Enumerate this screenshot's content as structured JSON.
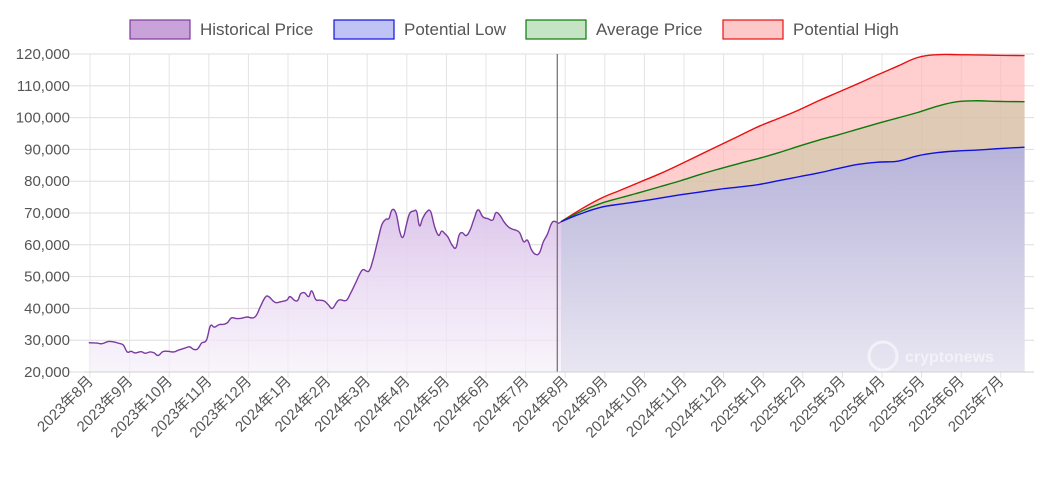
{
  "legend": {
    "items": [
      {
        "key": "hist",
        "label": "Historical Price",
        "fill": "#c8a2d8",
        "stroke": "#7b3aa0"
      },
      {
        "key": "low",
        "label": "Potential Low",
        "fill": "#c0c3f6",
        "stroke": "#1010e0"
      },
      {
        "key": "avg",
        "label": "Average Price",
        "fill": "#c5e4c3",
        "stroke": "#0a7a0a"
      },
      {
        "key": "high",
        "label": "Potential High",
        "fill": "#fcc8c8",
        "stroke": "#e81010"
      }
    ]
  },
  "watermark": "cryptonews",
  "chart_data": {
    "type": "area",
    "yticks": [
      20000,
      30000,
      40000,
      50000,
      60000,
      70000,
      80000,
      90000,
      100000,
      110000,
      120000
    ],
    "ylim": [
      20000,
      120000
    ],
    "xticks": [
      "2023年8月",
      "2023年9月",
      "2023年10月",
      "2023年11月",
      "2023年12月",
      "2024年1月",
      "2024年2月",
      "2024年3月",
      "2024年4月",
      "2024年5月",
      "2024年6月",
      "2024年7月",
      "2024年8月",
      "2024年9月",
      "2024年10月",
      "2024年11月",
      "2024年12月",
      "2025年1月",
      "2025年2月",
      "2025年3月",
      "2025年4月",
      "2025年5月",
      "2025年6月",
      "2025年7月"
    ],
    "grid": true,
    "legend_position": "top",
    "divider_month": 11.8,
    "xlim_months": [
      -0.03,
      23.6
    ],
    "historical": {
      "name": "Historical Price",
      "points": [
        [
          -0.03,
          29200
        ],
        [
          0.17,
          29100
        ],
        [
          0.3,
          28900
        ],
        [
          0.47,
          29600
        ],
        [
          0.62,
          29400
        ],
        [
          0.73,
          29000
        ],
        [
          0.84,
          28500
        ],
        [
          0.94,
          26300
        ],
        [
          1.04,
          26500
        ],
        [
          1.14,
          26000
        ],
        [
          1.29,
          26400
        ],
        [
          1.39,
          25900
        ],
        [
          1.52,
          26300
        ],
        [
          1.62,
          26000
        ],
        [
          1.72,
          25200
        ],
        [
          1.84,
          26400
        ],
        [
          1.97,
          26500
        ],
        [
          2.11,
          26300
        ],
        [
          2.24,
          26900
        ],
        [
          2.39,
          27500
        ],
        [
          2.52,
          27900
        ],
        [
          2.62,
          27100
        ],
        [
          2.72,
          27300
        ],
        [
          2.82,
          29100
        ],
        [
          2.94,
          30000
        ],
        [
          3.04,
          34500
        ],
        [
          3.14,
          34100
        ],
        [
          3.26,
          34900
        ],
        [
          3.37,
          35000
        ],
        [
          3.47,
          35500
        ],
        [
          3.57,
          37000
        ],
        [
          3.7,
          36800
        ],
        [
          3.82,
          36900
        ],
        [
          3.97,
          37300
        ],
        [
          4.1,
          37000
        ],
        [
          4.2,
          37800
        ],
        [
          4.3,
          40500
        ],
        [
          4.42,
          43400
        ],
        [
          4.5,
          43800
        ],
        [
          4.62,
          42400
        ],
        [
          4.7,
          41800
        ],
        [
          4.82,
          42100
        ],
        [
          4.97,
          42600
        ],
        [
          5.05,
          43700
        ],
        [
          5.17,
          42500
        ],
        [
          5.25,
          42600
        ],
        [
          5.32,
          44600
        ],
        [
          5.42,
          44900
        ],
        [
          5.52,
          43700
        ],
        [
          5.6,
          45500
        ],
        [
          5.7,
          42800
        ],
        [
          5.8,
          42600
        ],
        [
          5.92,
          42300
        ],
        [
          6.02,
          41100
        ],
        [
          6.12,
          40000
        ],
        [
          6.24,
          42100
        ],
        [
          6.32,
          42700
        ],
        [
          6.47,
          42500
        ],
        [
          6.57,
          44500
        ],
        [
          6.7,
          47800
        ],
        [
          6.82,
          51000
        ],
        [
          6.9,
          52200
        ],
        [
          7.04,
          51700
        ],
        [
          7.14,
          55000
        ],
        [
          7.27,
          61500
        ],
        [
          7.37,
          66300
        ],
        [
          7.47,
          68000
        ],
        [
          7.55,
          68300
        ],
        [
          7.63,
          71000
        ],
        [
          7.73,
          69800
        ],
        [
          7.83,
          63800
        ],
        [
          7.91,
          62500
        ],
        [
          7.99,
          66300
        ],
        [
          8.07,
          69800
        ],
        [
          8.17,
          70600
        ],
        [
          8.25,
          70400
        ],
        [
          8.32,
          66000
        ],
        [
          8.4,
          68300
        ],
        [
          8.5,
          70300
        ],
        [
          8.6,
          70500
        ],
        [
          8.7,
          65800
        ],
        [
          8.8,
          63000
        ],
        [
          8.88,
          64300
        ],
        [
          8.96,
          63500
        ],
        [
          9.04,
          62400
        ],
        [
          9.14,
          60000
        ],
        [
          9.24,
          59100
        ],
        [
          9.32,
          63000
        ],
        [
          9.4,
          63800
        ],
        [
          9.5,
          62900
        ],
        [
          9.6,
          64700
        ],
        [
          9.7,
          68200
        ],
        [
          9.8,
          71000
        ],
        [
          9.92,
          68800
        ],
        [
          10.05,
          68200
        ],
        [
          10.17,
          67800
        ],
        [
          10.25,
          70100
        ],
        [
          10.35,
          69300
        ],
        [
          10.45,
          67300
        ],
        [
          10.55,
          65800
        ],
        [
          10.65,
          65000
        ],
        [
          10.75,
          64600
        ],
        [
          10.85,
          63800
        ],
        [
          10.95,
          61000
        ],
        [
          11.05,
          61400
        ],
        [
          11.15,
          58400
        ],
        [
          11.25,
          57000
        ],
        [
          11.35,
          57500
        ],
        [
          11.45,
          61000
        ],
        [
          11.55,
          63300
        ],
        [
          11.65,
          66600
        ],
        [
          11.73,
          67400
        ],
        [
          11.83,
          66800
        ],
        [
          11.9,
          67300
        ]
      ]
    },
    "series": [
      {
        "name": "Potential Low",
        "points": [
          [
            11.9,
            67300
          ],
          [
            12.4,
            69800
          ],
          [
            12.9,
            71800
          ],
          [
            13.4,
            72800
          ],
          [
            13.9,
            73700
          ],
          [
            14.4,
            74700
          ],
          [
            14.9,
            75700
          ],
          [
            15.4,
            76600
          ],
          [
            15.9,
            77500
          ],
          [
            16.4,
            78200
          ],
          [
            16.9,
            79000
          ],
          [
            17.4,
            80200
          ],
          [
            17.9,
            81400
          ],
          [
            18.4,
            82600
          ],
          [
            18.9,
            84000
          ],
          [
            19.4,
            85300
          ],
          [
            19.9,
            86000
          ],
          [
            20.4,
            86300
          ],
          [
            20.9,
            88000
          ],
          [
            21.4,
            89000
          ],
          [
            21.9,
            89500
          ],
          [
            22.4,
            89800
          ],
          [
            22.9,
            90200
          ],
          [
            23.6,
            90700
          ]
        ]
      },
      {
        "name": "Average Price",
        "points": [
          [
            11.9,
            67300
          ],
          [
            12.4,
            70500
          ],
          [
            12.9,
            73000
          ],
          [
            13.4,
            74800
          ],
          [
            13.9,
            76500
          ],
          [
            14.4,
            78300
          ],
          [
            14.9,
            80100
          ],
          [
            15.4,
            82100
          ],
          [
            15.9,
            83900
          ],
          [
            16.4,
            85600
          ],
          [
            16.9,
            87200
          ],
          [
            17.4,
            89000
          ],
          [
            17.9,
            91000
          ],
          [
            18.4,
            92900
          ],
          [
            18.9,
            94600
          ],
          [
            19.4,
            96400
          ],
          [
            19.9,
            98200
          ],
          [
            20.4,
            99900
          ],
          [
            20.9,
            101600
          ],
          [
            21.4,
            103600
          ],
          [
            21.9,
            105000
          ],
          [
            22.4,
            105300
          ],
          [
            22.9,
            105100
          ],
          [
            23.6,
            105000
          ]
        ]
      },
      {
        "name": "Potential High",
        "points": [
          [
            11.9,
            67300
          ],
          [
            12.4,
            71200
          ],
          [
            12.9,
            74600
          ],
          [
            13.4,
            77200
          ],
          [
            13.9,
            79800
          ],
          [
            14.4,
            82400
          ],
          [
            14.9,
            85300
          ],
          [
            15.4,
            88300
          ],
          [
            15.9,
            91300
          ],
          [
            16.4,
            94300
          ],
          [
            16.9,
            97300
          ],
          [
            17.4,
            99800
          ],
          [
            17.9,
            102400
          ],
          [
            18.4,
            105300
          ],
          [
            18.9,
            108000
          ],
          [
            19.4,
            110700
          ],
          [
            19.9,
            113500
          ],
          [
            20.4,
            116200
          ],
          [
            20.9,
            118900
          ],
          [
            21.4,
            119800
          ],
          [
            21.9,
            119800
          ],
          [
            22.4,
            119700
          ],
          [
            22.9,
            119600
          ],
          [
            23.6,
            119500
          ]
        ]
      }
    ]
  }
}
